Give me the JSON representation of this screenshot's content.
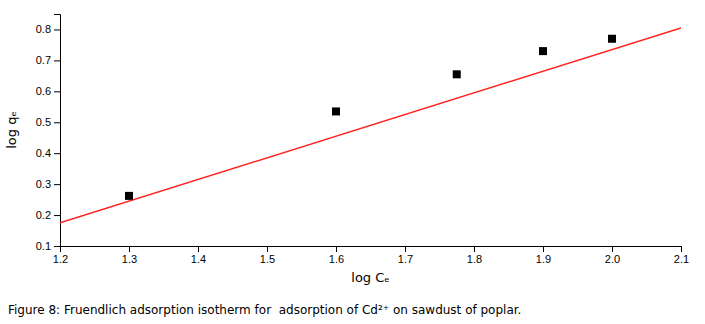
{
  "chart_data": {
    "type": "scatter",
    "title": "Figure 8: Fruendlich adsorption isotherm for  adsorption of Cd²⁺ on sawdust of poplar.",
    "x_label": "log Cₑ",
    "y_label": "log qₑ",
    "series": [
      {
        "type": "line",
        "color": "#ff2020",
        "line_style": "solid",
        "x": [
          1.2,
          2.1
        ],
        "values": [
          0.175,
          0.805
        ]
      },
      {
        "type": "scatter",
        "color": "black",
        "marker": "square",
        "x": [
          1.3,
          1.6,
          1.775,
          1.9,
          2.0
        ],
        "values": [
          0.262,
          0.535,
          0.655,
          0.73,
          0.77
        ]
      }
    ],
    "xlim": [
      1.2,
      2.1
    ],
    "ylim": [
      0.1,
      0.85
    ],
    "xticks": [
      1.2,
      1.3,
      1.4,
      1.5,
      1.6,
      1.7,
      1.8,
      1.9,
      {
        "value": 2.0,
        "label": "2.0"
      },
      2.1
    ],
    "yticks": [
      0.1,
      0.2,
      0.3,
      0.4,
      0.5,
      0.6,
      0.7,
      0.8
    ]
  }
}
